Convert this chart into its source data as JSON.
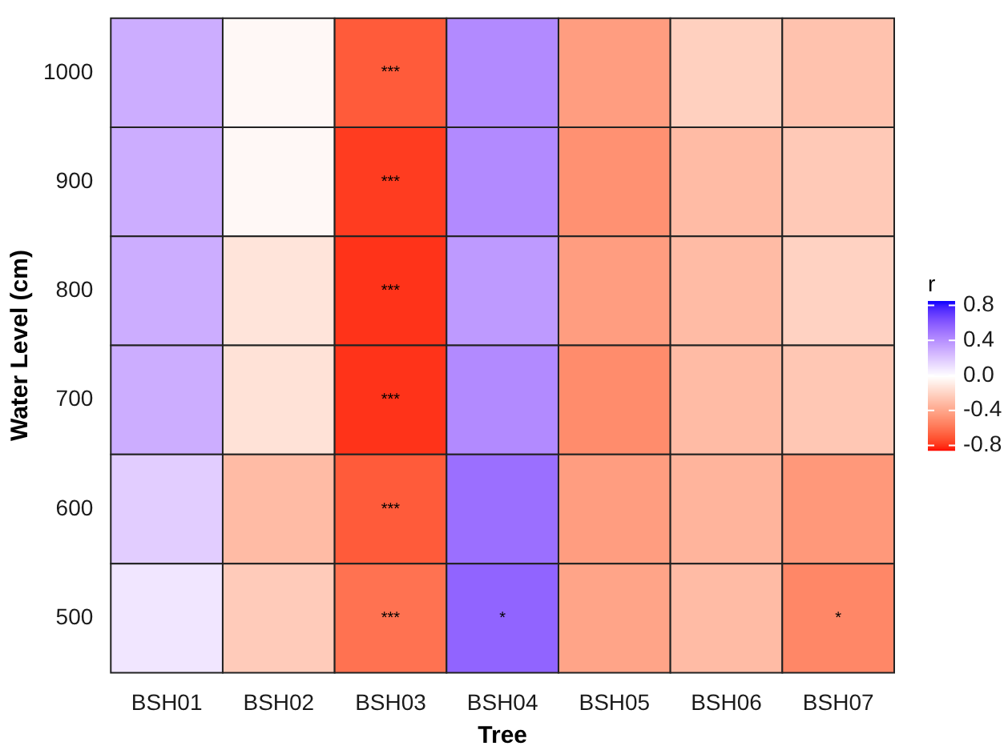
{
  "chart_data": {
    "type": "heatmap",
    "xlabel": "Tree",
    "ylabel": "Water Level (cm)",
    "clabel": "r",
    "categories": [
      "BSH01",
      "BSH02",
      "BSH03",
      "BSH04",
      "BSH05",
      "BSH06",
      "BSH07"
    ],
    "y_categories": [
      "1000",
      "900",
      "800",
      "700",
      "600",
      "500"
    ],
    "cells": [
      [
        0.3,
        -0.03,
        -0.68,
        0.43,
        -0.43,
        -0.21,
        -0.27
      ],
      [
        0.3,
        -0.03,
        -0.77,
        0.43,
        -0.48,
        -0.3,
        -0.24
      ],
      [
        0.3,
        -0.12,
        -0.79,
        0.37,
        -0.43,
        -0.3,
        -0.2
      ],
      [
        0.3,
        -0.13,
        -0.79,
        0.43,
        -0.5,
        -0.3,
        -0.25
      ],
      [
        0.18,
        -0.3,
        -0.68,
        0.53,
        -0.43,
        -0.33,
        -0.45
      ],
      [
        0.09,
        -0.23,
        -0.6,
        0.57,
        -0.4,
        -0.3,
        -0.52
      ]
    ],
    "cell_labels": [
      [
        null,
        null,
        "***",
        null,
        null,
        null,
        null
      ],
      [
        null,
        null,
        "***",
        null,
        null,
        null,
        null
      ],
      [
        null,
        null,
        "***",
        null,
        null,
        null,
        null
      ],
      [
        null,
        null,
        "***",
        null,
        null,
        null,
        null
      ],
      [
        null,
        null,
        "***",
        null,
        null,
        null,
        null
      ],
      [
        null,
        null,
        "***",
        "*",
        null,
        null,
        "*"
      ]
    ],
    "clim": [
      -0.85,
      0.85
    ],
    "cticks": [
      {
        "value": 0.8,
        "label": "0.8"
      },
      {
        "value": 0.4,
        "label": "0.4"
      },
      {
        "value": 0,
        "label": "0.0"
      },
      {
        "value": -0.4,
        "label": "-0.4"
      },
      {
        "value": -0.8,
        "label": "-0.8"
      }
    ]
  }
}
